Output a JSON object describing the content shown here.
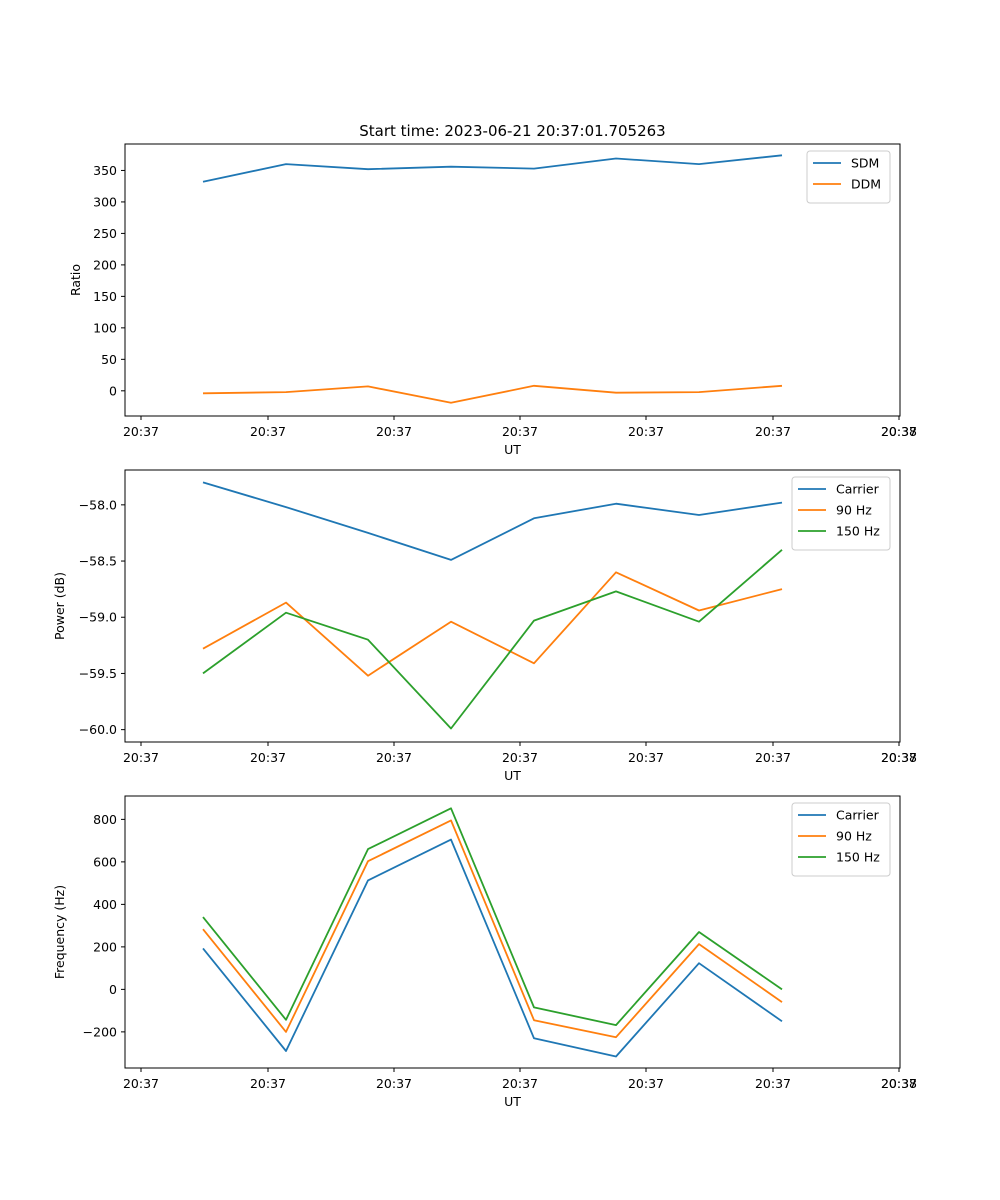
{
  "figure": {
    "title": "Start time: 2023-06-21 20:37:01.705263"
  },
  "chart_data": [
    {
      "type": "line",
      "xlabel": "UT",
      "ylabel": "Ratio",
      "xticklabels": [
        "20:37",
        "20:37",
        "20:37",
        "20:37",
        "20:37",
        "20:37",
        "20:37",
        "20:38"
      ],
      "ylim": [
        -40,
        392
      ],
      "yticks": [
        0,
        50,
        100,
        150,
        200,
        250,
        300,
        350
      ],
      "yticklabels": [
        "0",
        "50",
        "100",
        "150",
        "200",
        "250",
        "300",
        "350"
      ],
      "legend_position": "top-right",
      "series": [
        {
          "name": "SDM",
          "color": "#1f77b4",
          "values": [
            332,
            360,
            352,
            356,
            353,
            369,
            360,
            374
          ]
        },
        {
          "name": "DDM",
          "color": "#ff7f0e",
          "values": [
            -4,
            -2,
            7,
            -19,
            8,
            -3,
            -2,
            8
          ]
        }
      ]
    },
    {
      "type": "line",
      "xlabel": "UT",
      "ylabel": "Power (dB)",
      "xticklabels": [
        "20:37",
        "20:37",
        "20:37",
        "20:37",
        "20:37",
        "20:37",
        "20:37",
        "20:38"
      ],
      "ylim": [
        -60.11,
        -57.69
      ],
      "yticks": [
        -60.0,
        -59.5,
        -59.0,
        -58.5,
        -58.0
      ],
      "yticklabels": [
        "−60.0",
        "−59.5",
        "−59.0",
        "−58.5",
        "−58.0"
      ],
      "legend_position": "top-right",
      "series": [
        {
          "name": "Carrier",
          "color": "#1f77b4",
          "values": [
            -57.8,
            -58.02,
            -58.25,
            -58.49,
            -58.12,
            -57.99,
            -58.09,
            -57.98
          ]
        },
        {
          "name": "90 Hz",
          "color": "#ff7f0e",
          "values": [
            -59.28,
            -58.87,
            -59.52,
            -59.04,
            -59.41,
            -58.6,
            -58.94,
            -58.75
          ]
        },
        {
          "name": "150 Hz",
          "color": "#2ca02c",
          "values": [
            -59.5,
            -58.96,
            -59.2,
            -59.99,
            -59.03,
            -58.77,
            -59.04,
            -58.4
          ]
        }
      ]
    },
    {
      "type": "line",
      "xlabel": "UT",
      "ylabel": "Frequency (Hz)",
      "xticklabels": [
        "20:37",
        "20:37",
        "20:37",
        "20:37",
        "20:37",
        "20:37",
        "20:37",
        "20:38"
      ],
      "ylim": [
        -370,
        910
      ],
      "yticks": [
        -200,
        0,
        200,
        400,
        600,
        800
      ],
      "yticklabels": [
        "−200",
        "0",
        "200",
        "400",
        "600",
        "800"
      ],
      "legend_position": "top-right",
      "series": [
        {
          "name": "Carrier",
          "color": "#1f77b4",
          "values": [
            193,
            -290,
            513,
            705,
            -230,
            -316,
            123,
            -150
          ]
        },
        {
          "name": "90 Hz",
          "color": "#ff7f0e",
          "values": [
            283,
            -200,
            603,
            795,
            -145,
            -225,
            213,
            -60
          ]
        },
        {
          "name": "150 Hz",
          "color": "#2ca02c",
          "values": [
            340,
            -143,
            660,
            852,
            -85,
            -168,
            270,
            0
          ]
        }
      ]
    }
  ]
}
